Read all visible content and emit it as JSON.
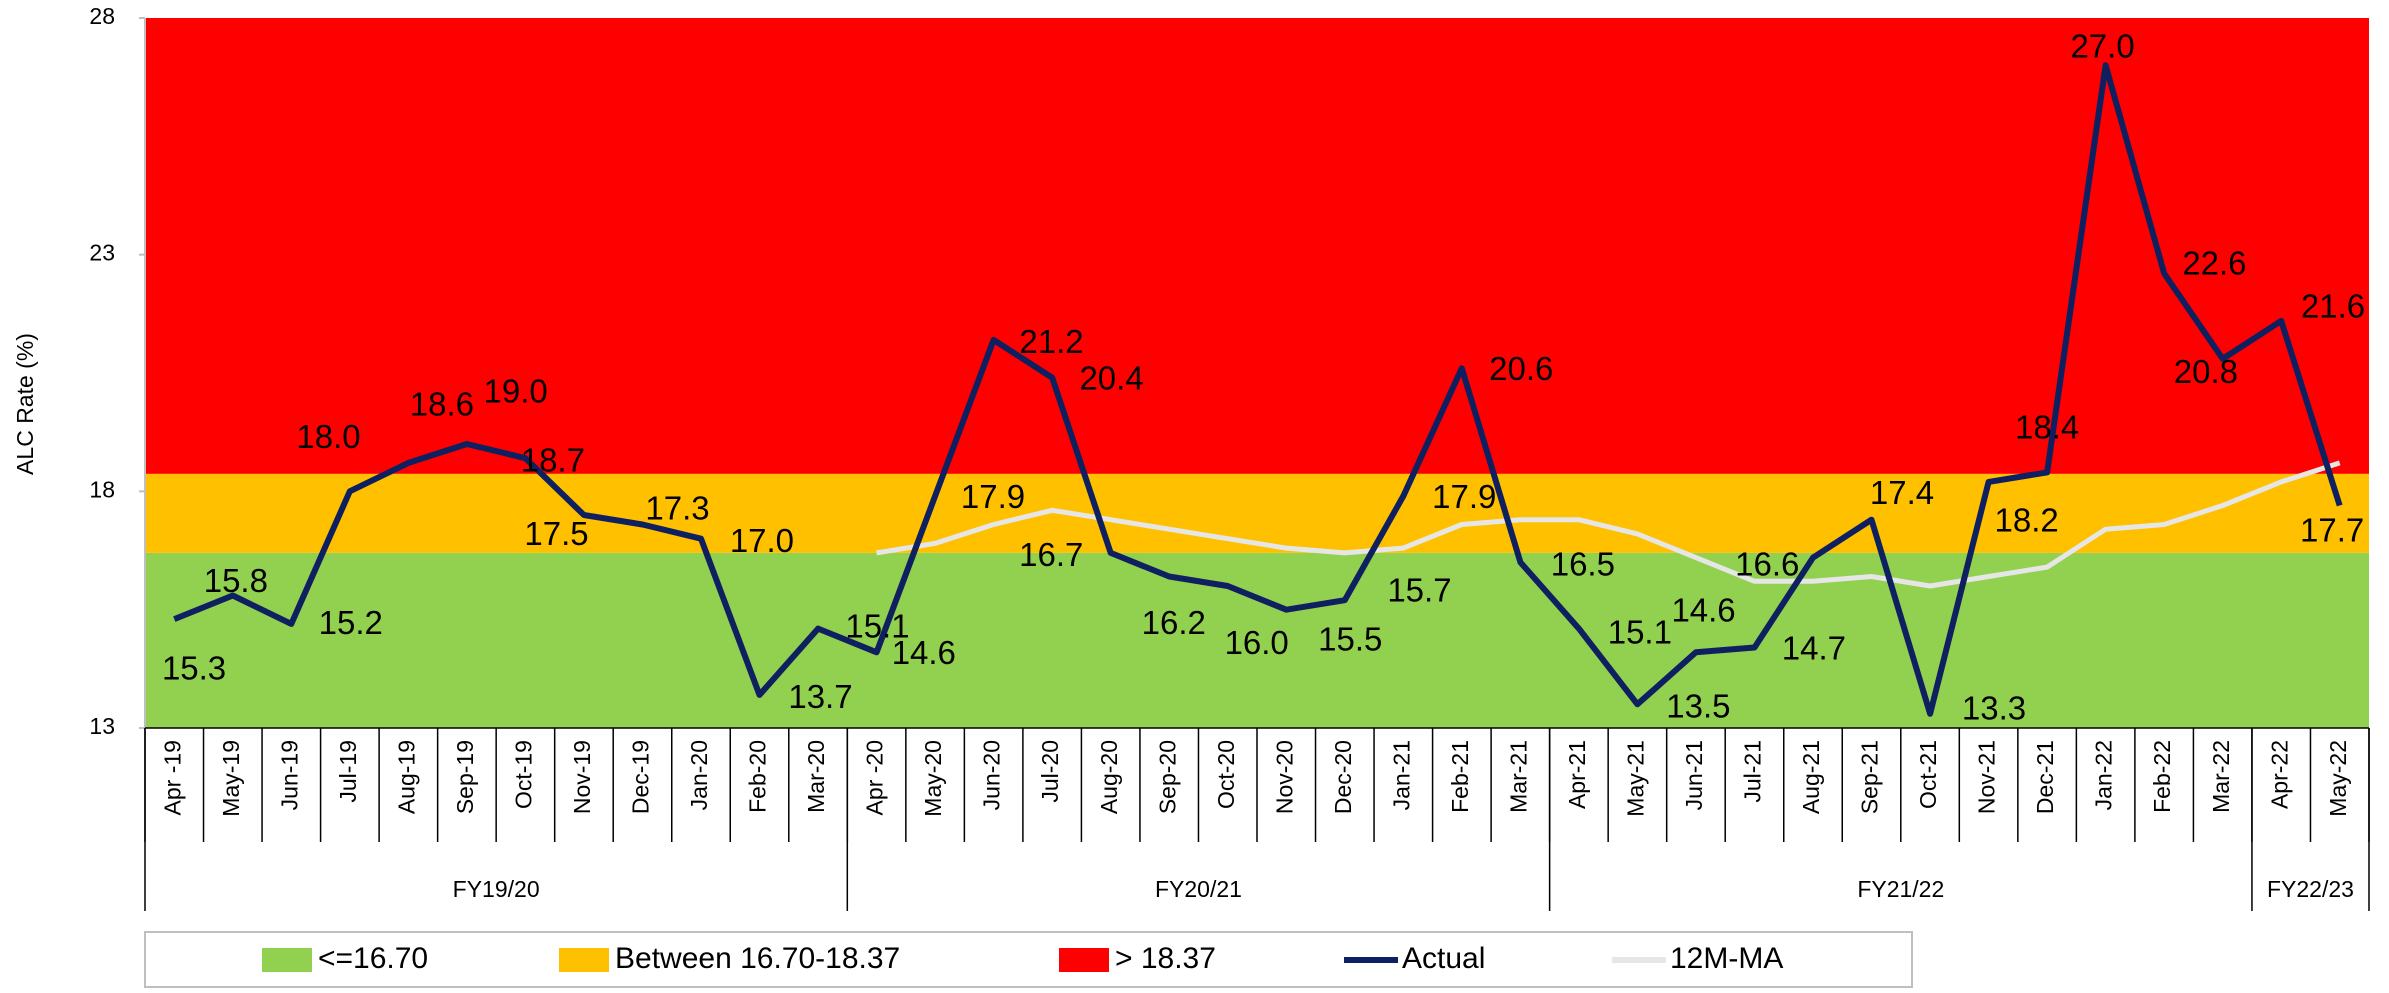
{
  "chart_data": {
    "type": "line",
    "y_axis_label": "ALC Rate (%)",
    "ylim": [
      13,
      28
    ],
    "yticks": [
      13,
      18,
      23,
      28
    ],
    "categories": [
      "Apr -19",
      "May-19",
      "Jun-19",
      "Jul-19",
      "Aug-19",
      "Sep-19",
      "Oct-19",
      "Nov-19",
      "Dec-19",
      "Jan-20",
      "Feb-20",
      "Mar-20",
      "Apr -20",
      "May-20",
      "Jun-20",
      "Jul-20",
      "Aug-20",
      "Sep-20",
      "Oct-20",
      "Nov-20",
      "Dec-20",
      "Jan-21",
      "Feb-21",
      "Mar-21",
      "Apr-21",
      "May-21",
      "Jun-21",
      "Jul-21",
      "Aug-21",
      "Sep-21",
      "Oct-21",
      "Nov-21",
      "Dec-21",
      "Jan-22",
      "Feb-22",
      "Mar-22",
      "Apr-22",
      "May-22"
    ],
    "groups": [
      {
        "label": "FY19/20",
        "count": 12
      },
      {
        "label": "FY20/21",
        "count": 12
      },
      {
        "label": "FY21/22",
        "count": 12
      },
      {
        "label": "FY22/23",
        "count": 2
      }
    ],
    "bands": [
      {
        "name": "<=16.70",
        "from": 13,
        "to": 16.7,
        "color": "#92d050"
      },
      {
        "name": "Between 16.70-18.37",
        "from": 16.7,
        "to": 18.37,
        "color": "#ffc000"
      },
      {
        "name": "> 18.37",
        "from": 18.37,
        "to": 28,
        "color": "#ff0000"
      }
    ],
    "series": [
      {
        "name": "Actual",
        "color": "#0f2060",
        "values": [
          15.3,
          15.8,
          15.2,
          18.0,
          18.6,
          19.0,
          18.7,
          17.5,
          17.3,
          17.0,
          13.7,
          15.1,
          14.6,
          17.9,
          21.2,
          20.4,
          16.7,
          16.2,
          16.0,
          15.5,
          15.7,
          17.9,
          20.6,
          16.5,
          15.1,
          13.5,
          14.6,
          14.7,
          16.6,
          17.4,
          13.3,
          18.2,
          18.4,
          27.0,
          22.6,
          20.8,
          21.6,
          17.7
        ],
        "value_labels": [
          "15.3",
          "15.8",
          "15.2",
          "18.0",
          "18.6",
          "19.0",
          "18.7",
          "17.5",
          "17.3",
          "17.0",
          "13.7",
          "15.1",
          "14.6",
          "17.9",
          "21.2",
          "20.4",
          "16.7",
          "16.2",
          "16.0",
          "15.5",
          "15.7",
          "17.9",
          "20.6",
          "16.5",
          "15.1",
          "13.5",
          "14.6",
          "14.7",
          "16.6",
          "17.4",
          "13.3",
          "18.2",
          "18.4",
          "27.0",
          "22.6",
          "20.8",
          "21.6",
          "17.7"
        ]
      },
      {
        "name": "12M-MA",
        "color": "#e6e6e6",
        "values": [
          null,
          null,
          null,
          null,
          null,
          null,
          null,
          null,
          null,
          null,
          null,
          null,
          16.7,
          16.9,
          17.3,
          17.6,
          17.4,
          17.2,
          17.0,
          16.8,
          16.7,
          16.8,
          17.3,
          17.4,
          17.4,
          17.1,
          16.6,
          16.1,
          16.1,
          16.2,
          16.0,
          16.2,
          16.4,
          17.2,
          17.3,
          17.7,
          18.2,
          18.6
        ]
      }
    ]
  }
}
